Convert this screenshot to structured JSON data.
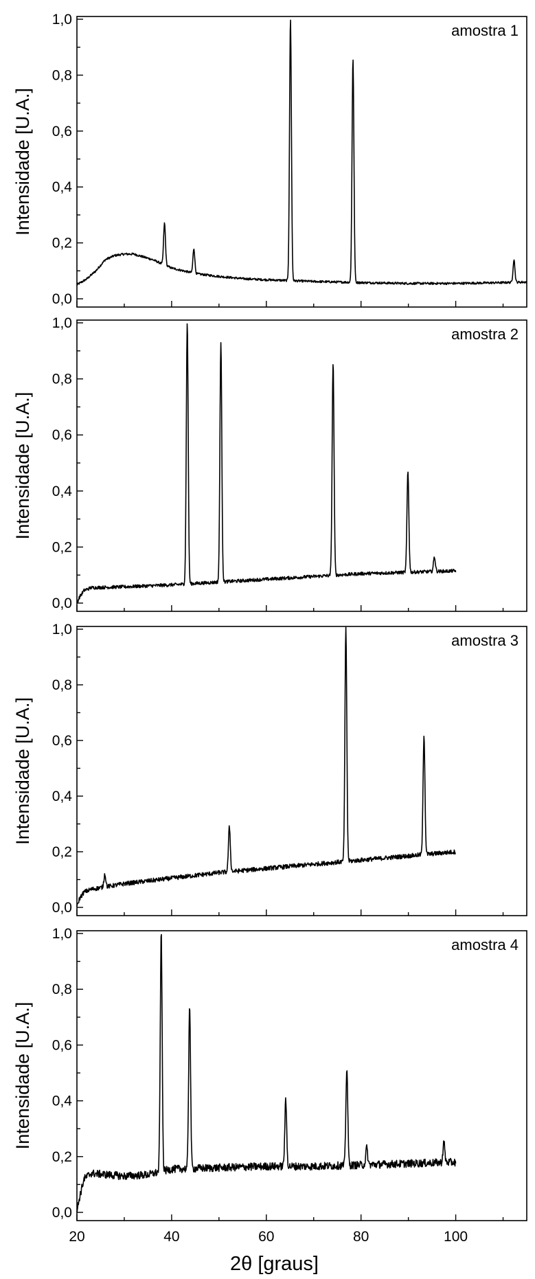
{
  "chart_data": {
    "type": "line",
    "xlabel": "2θ [graus]",
    "ylabel": "Intensidade [U.A.]",
    "xlim": [
      20,
      115
    ],
    "ylim": [
      0,
      1.0
    ],
    "x_ticks": [
      20,
      40,
      60,
      80,
      100
    ],
    "x_tick_labels": [
      "20",
      "40",
      "60",
      "80",
      "100"
    ],
    "y_ticks": [
      0,
      0.2,
      0.4,
      0.6,
      0.8,
      1.0
    ],
    "y_tick_labels": [
      "0,0",
      "0,2",
      "0,4",
      "0,6",
      "0,8",
      "1,0"
    ],
    "grid": false,
    "panels": [
      {
        "label": "amostra 1",
        "x_range": [
          20,
          115
        ],
        "baseline": [
          [
            20,
            0.05
          ],
          [
            22,
            0.07
          ],
          [
            24,
            0.1
          ],
          [
            26,
            0.14
          ],
          [
            28,
            0.155
          ],
          [
            30,
            0.16
          ],
          [
            32,
            0.16
          ],
          [
            34,
            0.15
          ],
          [
            36,
            0.14
          ],
          [
            38,
            0.125
          ],
          [
            40,
            0.11
          ],
          [
            45,
            0.09
          ],
          [
            50,
            0.08
          ],
          [
            55,
            0.072
          ],
          [
            60,
            0.068
          ],
          [
            65,
            0.065
          ],
          [
            70,
            0.062
          ],
          [
            80,
            0.058
          ],
          [
            90,
            0.055
          ],
          [
            100,
            0.055
          ],
          [
            110,
            0.058
          ],
          [
            115,
            0.06
          ]
        ],
        "peaks": [
          [
            38.5,
            0.27
          ],
          [
            44.7,
            0.18
          ],
          [
            65.1,
            1.0
          ],
          [
            78.3,
            0.86
          ],
          [
            112.3,
            0.14
          ]
        ],
        "noise": 0.004
      },
      {
        "label": "amostra 2",
        "x_range": [
          20,
          100
        ],
        "baseline": [
          [
            20,
            0.0
          ],
          [
            20.5,
            0.02
          ],
          [
            21.5,
            0.045
          ],
          [
            23,
            0.055
          ],
          [
            30,
            0.058
          ],
          [
            40,
            0.065
          ],
          [
            50,
            0.075
          ],
          [
            60,
            0.085
          ],
          [
            70,
            0.095
          ],
          [
            80,
            0.105
          ],
          [
            90,
            0.11
          ],
          [
            100,
            0.115
          ]
        ],
        "peaks": [
          [
            43.3,
            1.0
          ],
          [
            50.4,
            0.93
          ],
          [
            74.1,
            0.86
          ],
          [
            89.9,
            0.47
          ],
          [
            95.5,
            0.165
          ]
        ],
        "noise": 0.006
      },
      {
        "label": "amostra 3",
        "x_range": [
          20,
          100
        ],
        "baseline": [
          [
            20,
            0.0
          ],
          [
            20.5,
            0.03
          ],
          [
            21.5,
            0.055
          ],
          [
            23,
            0.065
          ],
          [
            30,
            0.085
          ],
          [
            40,
            0.105
          ],
          [
            50,
            0.125
          ],
          [
            60,
            0.14
          ],
          [
            70,
            0.155
          ],
          [
            80,
            0.17
          ],
          [
            90,
            0.185
          ],
          [
            100,
            0.2
          ]
        ],
        "peaks": [
          [
            25.9,
            0.12
          ],
          [
            52.2,
            0.29
          ],
          [
            76.8,
            1.0
          ],
          [
            93.3,
            0.62
          ]
        ],
        "noise": 0.008
      },
      {
        "label": "amostra 4",
        "x_range": [
          20,
          100
        ],
        "baseline": [
          [
            20,
            0.0
          ],
          [
            20.5,
            0.05
          ],
          [
            21.5,
            0.12
          ],
          [
            23,
            0.14
          ],
          [
            30,
            0.13
          ],
          [
            35,
            0.135
          ],
          [
            40,
            0.155
          ],
          [
            50,
            0.16
          ],
          [
            60,
            0.165
          ],
          [
            70,
            0.165
          ],
          [
            80,
            0.17
          ],
          [
            90,
            0.175
          ],
          [
            100,
            0.18
          ]
        ],
        "peaks": [
          [
            37.8,
            1.0
          ],
          [
            43.8,
            0.75
          ],
          [
            64.1,
            0.4
          ],
          [
            77.0,
            0.52
          ],
          [
            81.2,
            0.23
          ],
          [
            97.5,
            0.25
          ]
        ],
        "noise": 0.014
      }
    ]
  }
}
